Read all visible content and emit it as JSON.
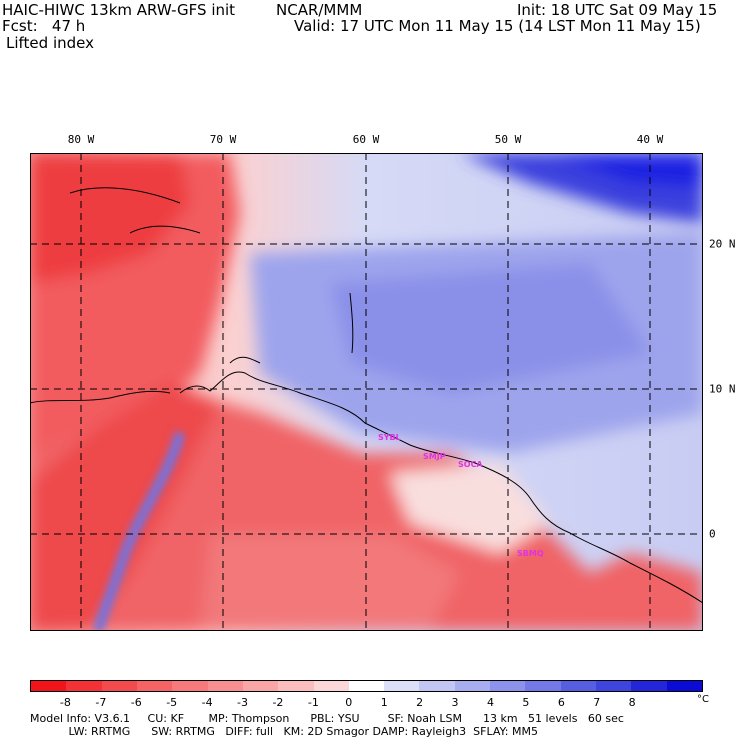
{
  "header": {
    "model_title": "HAIC-HIWC 13km ARW-GFS init",
    "org": "NCAR/MMM",
    "init": "Init: 18 UTC Sat 09 May 15",
    "fcst": "Fcst:   47 h",
    "valid": "Valid: 17 UTC Mon 11 May 15 (14 LST Mon 11 May 15)",
    "field": "Lifted index"
  },
  "map": {
    "lon_ticks": [
      "80 W",
      "70 W",
      "60 W",
      "50 W",
      "40 W"
    ],
    "lat_ticks": [
      "20 N",
      "10 N",
      "0"
    ],
    "cities": [
      "SYBL",
      "SMJP",
      "SOCA",
      "SBMQ"
    ],
    "colors": {
      "neg_strong": "#e8282d",
      "neg_light": "#f7b8b6",
      "neutral": "#ffffff",
      "pos_light": "#c8cdf4",
      "pos_strong": "#1f22e2"
    }
  },
  "colorbar": {
    "labels": [
      "-8",
      "-7",
      "-6",
      "-5",
      "-4",
      "-3",
      "-2",
      "-1",
      "0",
      "1",
      "2",
      "3",
      "4",
      "5",
      "6",
      "7",
      "8"
    ],
    "unit": "°C",
    "colors": [
      "#f1141a",
      "#f23236",
      "#f34b4d",
      "#f56365",
      "#f6797b",
      "#f78f91",
      "#f9a6a7",
      "#fbbebf",
      "#fcd7d8",
      "#ffffff",
      "#dcdff8",
      "#c2c6f3",
      "#a7adef",
      "#8d93ea",
      "#7379e6",
      "#585ee2",
      "#3e44de",
      "#2327d9",
      "#0a0bd5"
    ]
  },
  "footer": {
    "line1": "Model Info: V3.6.1     CU: KF       MP: Thompson      PBL: YSU        SF: Noah LSM      13 km   51 levels   60 sec",
    "line2": "           LW: RRTMG      SW: RRTMG   DIFF: full   KM: 2D Smagor DAMP: Rayleigh3  SFLAY: MM5"
  }
}
